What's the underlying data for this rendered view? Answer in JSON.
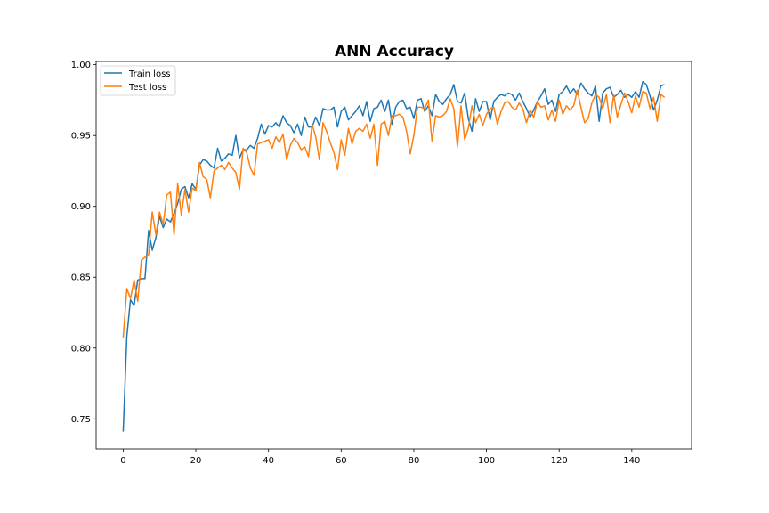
{
  "chart_data": {
    "type": "line",
    "title": "ANN Accuracy",
    "xlabel": "",
    "ylabel": "",
    "xlim": [
      -7.45,
      156.45
    ],
    "ylim": [
      0.7288,
      1.0023
    ],
    "xticks": [
      0,
      20,
      40,
      60,
      80,
      100,
      120,
      140
    ],
    "yticks": [
      0.75,
      0.8,
      0.85,
      0.9,
      0.95,
      1.0
    ],
    "ytick_labels": [
      "0.75",
      "0.80",
      "0.85",
      "0.90",
      "0.95",
      "1.00"
    ],
    "grid": false,
    "legend_position": "upper-left",
    "x": [
      0,
      1,
      2,
      3,
      4,
      5,
      6,
      7,
      8,
      9,
      10,
      11,
      12,
      13,
      14,
      15,
      16,
      17,
      18,
      19,
      20,
      21,
      22,
      23,
      24,
      25,
      26,
      27,
      28,
      29,
      30,
      31,
      32,
      33,
      34,
      35,
      36,
      37,
      38,
      39,
      40,
      41,
      42,
      43,
      44,
      45,
      46,
      47,
      48,
      49,
      50,
      51,
      52,
      53,
      54,
      55,
      56,
      57,
      58,
      59,
      60,
      61,
      62,
      63,
      64,
      65,
      66,
      67,
      68,
      69,
      70,
      71,
      72,
      73,
      74,
      75,
      76,
      77,
      78,
      79,
      80,
      81,
      82,
      83,
      84,
      85,
      86,
      87,
      88,
      89,
      90,
      91,
      92,
      93,
      94,
      95,
      96,
      97,
      98,
      99,
      100,
      101,
      102,
      103,
      104,
      105,
      106,
      107,
      108,
      109,
      110,
      111,
      112,
      113,
      114,
      115,
      116,
      117,
      118,
      119,
      120,
      121,
      122,
      123,
      124,
      125,
      126,
      127,
      128,
      129,
      130,
      131,
      132,
      133,
      134,
      135,
      136,
      137,
      138,
      139,
      140,
      141,
      142,
      143,
      144,
      145,
      146,
      147,
      148,
      149
    ],
    "series": [
      {
        "name": "Train loss",
        "color": "#1f77b4",
        "values": [
          0.741,
          0.808,
          0.834,
          0.83,
          0.848,
          0.849,
          0.849,
          0.883,
          0.869,
          0.878,
          0.893,
          0.885,
          0.891,
          0.889,
          0.895,
          0.902,
          0.912,
          0.914,
          0.906,
          0.916,
          0.912,
          0.929,
          0.933,
          0.932,
          0.929,
          0.927,
          0.941,
          0.932,
          0.934,
          0.937,
          0.936,
          0.95,
          0.934,
          0.94,
          0.94,
          0.943,
          0.941,
          0.948,
          0.958,
          0.951,
          0.957,
          0.956,
          0.959,
          0.956,
          0.964,
          0.959,
          0.957,
          0.952,
          0.958,
          0.95,
          0.963,
          0.956,
          0.956,
          0.963,
          0.957,
          0.969,
          0.968,
          0.968,
          0.97,
          0.956,
          0.967,
          0.97,
          0.961,
          0.964,
          0.967,
          0.971,
          0.964,
          0.974,
          0.96,
          0.969,
          0.97,
          0.975,
          0.967,
          0.975,
          0.958,
          0.97,
          0.974,
          0.975,
          0.969,
          0.97,
          0.962,
          0.975,
          0.976,
          0.967,
          0.971,
          0.964,
          0.979,
          0.974,
          0.972,
          0.976,
          0.979,
          0.986,
          0.974,
          0.973,
          0.98,
          0.962,
          0.953,
          0.976,
          0.967,
          0.974,
          0.974,
          0.961,
          0.974,
          0.977,
          0.979,
          0.978,
          0.98,
          0.979,
          0.975,
          0.98,
          0.974,
          0.969,
          0.963,
          0.968,
          0.974,
          0.978,
          0.983,
          0.972,
          0.975,
          0.967,
          0.979,
          0.981,
          0.985,
          0.98,
          0.983,
          0.979,
          0.987,
          0.983,
          0.98,
          0.978,
          0.985,
          0.96,
          0.98,
          0.983,
          0.984,
          0.977,
          0.979,
          0.982,
          0.977,
          0.979,
          0.977,
          0.981,
          0.977,
          0.988,
          0.986,
          0.978,
          0.968,
          0.975,
          0.985,
          0.986
        ]
      },
      {
        "name": "Test loss",
        "color": "#ff7f0e",
        "values": [
          0.807,
          0.842,
          0.835,
          0.848,
          0.833,
          0.862,
          0.864,
          0.866,
          0.896,
          0.88,
          0.896,
          0.887,
          0.908,
          0.91,
          0.88,
          0.916,
          0.894,
          0.912,
          0.896,
          0.913,
          0.911,
          0.931,
          0.921,
          0.919,
          0.906,
          0.925,
          0.927,
          0.929,
          0.926,
          0.931,
          0.927,
          0.924,
          0.912,
          0.941,
          0.938,
          0.927,
          0.922,
          0.944,
          0.945,
          0.946,
          0.947,
          0.941,
          0.949,
          0.945,
          0.951,
          0.933,
          0.943,
          0.948,
          0.945,
          0.94,
          0.942,
          0.935,
          0.958,
          0.949,
          0.933,
          0.959,
          0.953,
          0.945,
          0.938,
          0.926,
          0.947,
          0.936,
          0.955,
          0.944,
          0.953,
          0.955,
          0.953,
          0.958,
          0.948,
          0.958,
          0.929,
          0.958,
          0.96,
          0.95,
          0.964,
          0.964,
          0.965,
          0.963,
          0.953,
          0.937,
          0.95,
          0.97,
          0.97,
          0.969,
          0.975,
          0.946,
          0.964,
          0.963,
          0.964,
          0.967,
          0.976,
          0.969,
          0.942,
          0.971,
          0.947,
          0.955,
          0.971,
          0.959,
          0.965,
          0.957,
          0.965,
          0.969,
          0.97,
          0.958,
          0.967,
          0.973,
          0.974,
          0.97,
          0.968,
          0.973,
          0.969,
          0.959,
          0.968,
          0.963,
          0.974,
          0.97,
          0.971,
          0.961,
          0.968,
          0.96,
          0.975,
          0.965,
          0.971,
          0.968,
          0.971,
          0.982,
          0.97,
          0.959,
          0.962,
          0.973,
          0.979,
          0.977,
          0.969,
          0.979,
          0.959,
          0.979,
          0.963,
          0.972,
          0.98,
          0.974,
          0.966,
          0.978,
          0.97,
          0.981,
          0.98,
          0.969,
          0.977,
          0.96,
          0.979,
          0.977
        ]
      }
    ]
  }
}
